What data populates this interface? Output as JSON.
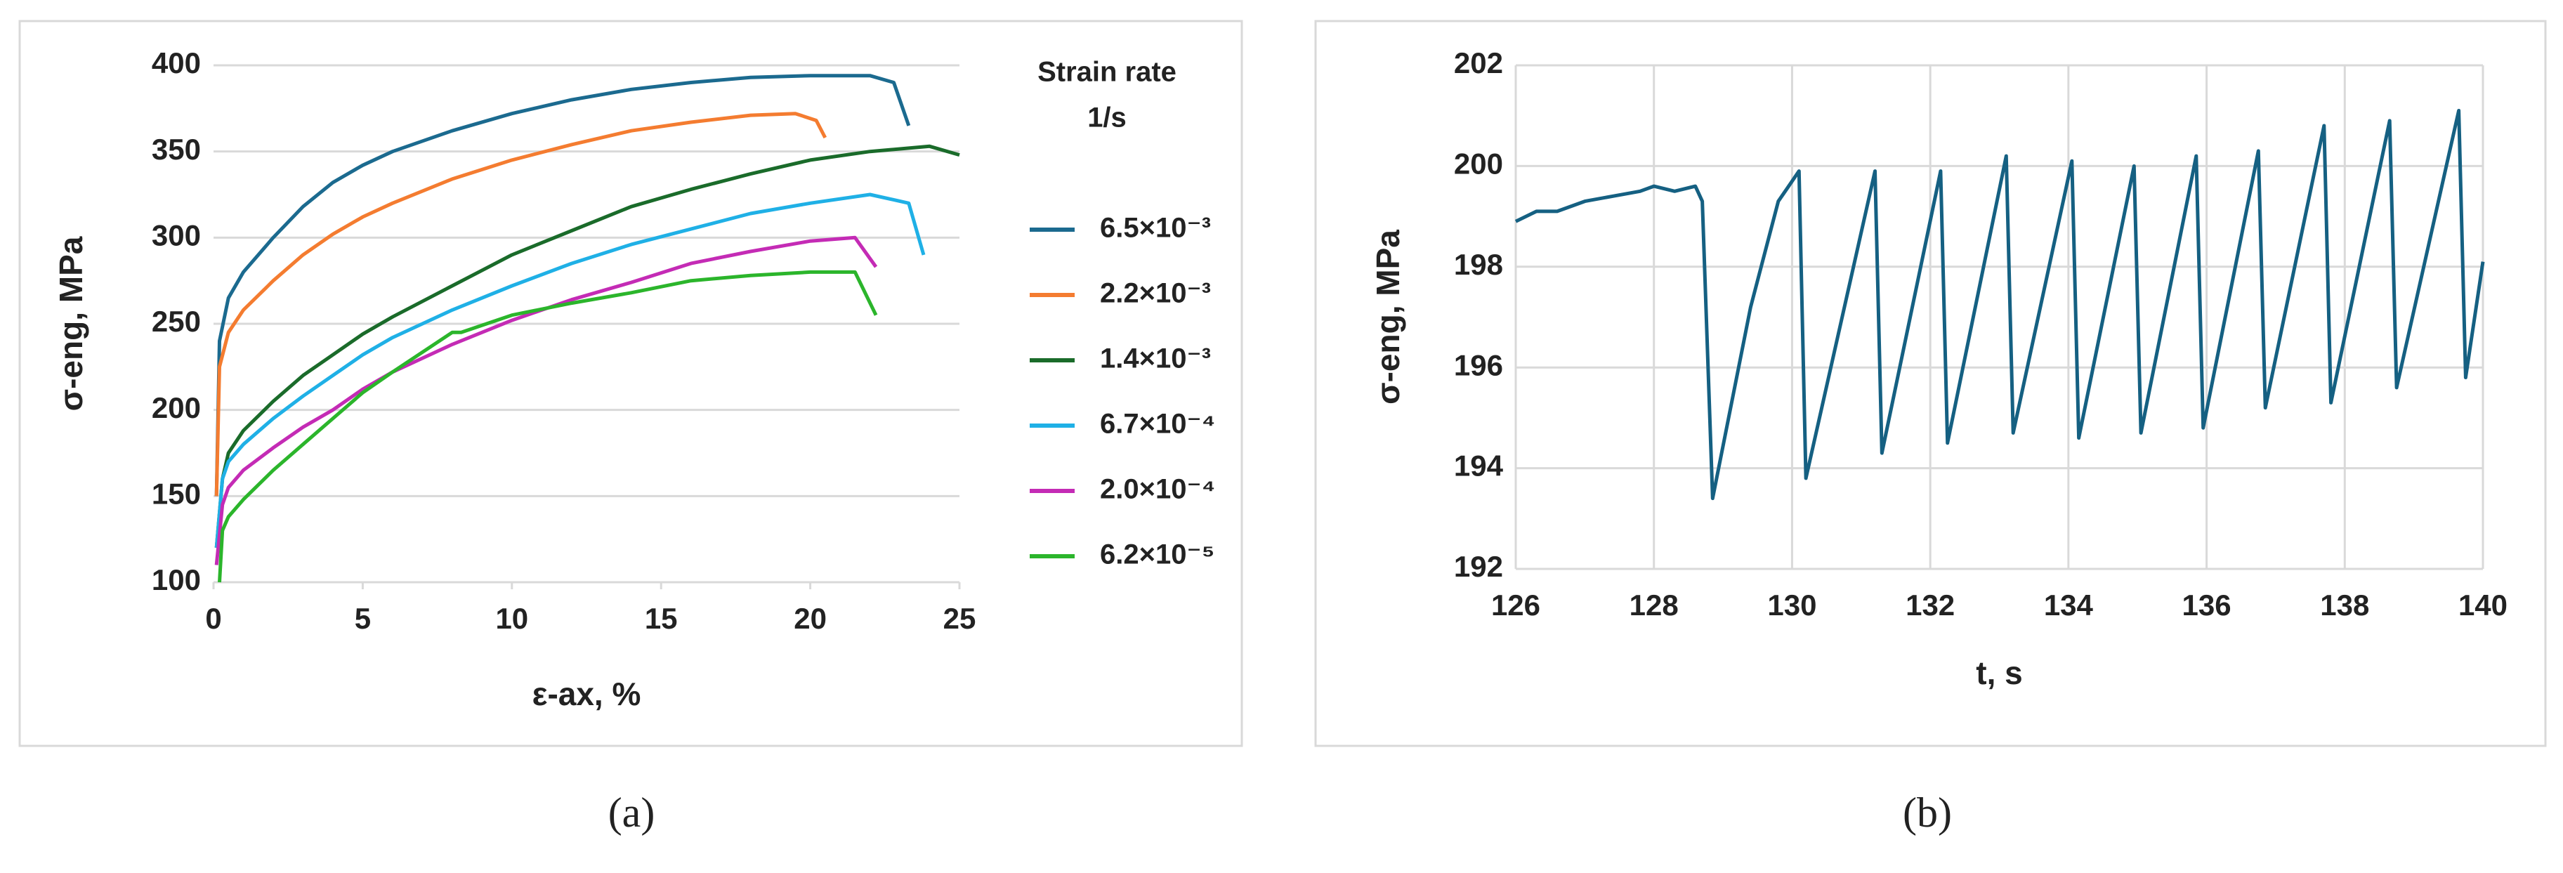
{
  "chart_data": [
    {
      "type": "line",
      "caption": "(a)",
      "x_label": "ε-ax, %",
      "y_label": "σ-eng, MPa",
      "legend_title": "Strain rate",
      "legend_subtitle": "1/s",
      "legend": "right",
      "xlim": [
        0,
        25
      ],
      "xticks": [
        0,
        5,
        10,
        15,
        20,
        25
      ],
      "ylim": [
        100,
        400
      ],
      "yticks": [
        100,
        150,
        200,
        250,
        300,
        350,
        400
      ],
      "grid_x": false,
      "grid_y": true,
      "series": [
        {
          "name": "6.5×10⁻³",
          "color": "#1b6a8f",
          "x": [
            0.1,
            0.2,
            0.5,
            1,
            2,
            3,
            4,
            5,
            6,
            8,
            10,
            12,
            14,
            16,
            18,
            20,
            22,
            22.8,
            23.3
          ],
          "values": [
            150,
            240,
            265,
            280,
            300,
            318,
            332,
            342,
            350,
            362,
            372,
            380,
            386,
            390,
            393,
            394,
            394,
            390,
            365
          ]
        },
        {
          "name": "2.2×10⁻³",
          "color": "#f47c30",
          "x": [
            0.1,
            0.2,
            0.5,
            1,
            2,
            3,
            4,
            5,
            6,
            8,
            10,
            12,
            14,
            16,
            18,
            19.5,
            20.2,
            20.5
          ],
          "values": [
            150,
            225,
            245,
            258,
            275,
            290,
            302,
            312,
            320,
            334,
            345,
            354,
            362,
            367,
            371,
            372,
            368,
            358
          ]
        },
        {
          "name": "1.4×10⁻³",
          "color": "#1a6b2a",
          "x": [
            0.1,
            0.3,
            0.5,
            1,
            2,
            3,
            4,
            5,
            6,
            8,
            10,
            12,
            14,
            16,
            18,
            20,
            22,
            24,
            25
          ],
          "values": [
            120,
            160,
            175,
            188,
            205,
            220,
            232,
            244,
            254,
            272,
            290,
            304,
            318,
            328,
            337,
            345,
            350,
            353,
            348
          ]
        },
        {
          "name": "6.7×10⁻⁴",
          "color": "#1fb0e6",
          "x": [
            0.1,
            0.3,
            0.5,
            1,
            2,
            3,
            4,
            5,
            6,
            8,
            10,
            12,
            14,
            16,
            18,
            20,
            22,
            23.3,
            23.8
          ],
          "values": [
            120,
            160,
            170,
            180,
            195,
            208,
            220,
            232,
            242,
            258,
            272,
            285,
            296,
            305,
            314,
            320,
            325,
            320,
            290
          ]
        },
        {
          "name": "2.0×10⁻⁴",
          "color": "#c42bb5",
          "x": [
            0.1,
            0.3,
            0.5,
            1,
            2,
            3,
            4,
            5,
            6,
            8,
            10,
            12,
            14,
            16,
            18,
            20,
            21.5,
            22.2
          ],
          "values": [
            110,
            145,
            155,
            165,
            178,
            190,
            200,
            212,
            222,
            238,
            252,
            264,
            274,
            285,
            292,
            298,
            300,
            283
          ]
        },
        {
          "name": "6.2×10⁻⁵",
          "color": "#2bb52b",
          "x": [
            0.2,
            0.3,
            0.5,
            1,
            2,
            3,
            4,
            5,
            6,
            8,
            8.3,
            10,
            12,
            14,
            16,
            18,
            20,
            21.5,
            22.2
          ],
          "values": [
            100,
            130,
            138,
            148,
            165,
            180,
            195,
            210,
            222,
            245,
            245,
            255,
            262,
            268,
            275,
            278,
            280,
            280,
            255
          ]
        }
      ]
    },
    {
      "type": "line",
      "caption": "(b)",
      "x_label": "t, s",
      "y_label": "σ-eng, MPa",
      "color": "#156082",
      "xlim": [
        126,
        140
      ],
      "xticks": [
        126,
        128,
        130,
        132,
        134,
        136,
        138,
        140
      ],
      "ylim": [
        192,
        202
      ],
      "yticks": [
        192,
        194,
        196,
        198,
        200,
        202
      ],
      "grid_x": true,
      "grid_y": true,
      "x": [
        126,
        126.3,
        126.6,
        127,
        127.4,
        127.8,
        128,
        128.3,
        128.6,
        128.7,
        128.85,
        129.4,
        129.8,
        130.1,
        130.2,
        131.2,
        131.3,
        132.15,
        132.25,
        133.1,
        133.2,
        134.05,
        134.15,
        134.95,
        135.05,
        135.85,
        135.95,
        136.75,
        136.85,
        137.7,
        137.8,
        138.65,
        138.75,
        139.65,
        139.75,
        140
      ],
      "values": [
        198.9,
        199.1,
        199.1,
        199.3,
        199.4,
        199.5,
        199.6,
        199.5,
        199.6,
        199.3,
        193.4,
        197.2,
        199.3,
        199.9,
        193.8,
        199.9,
        194.3,
        199.9,
        194.5,
        200.2,
        194.7,
        200.1,
        194.6,
        200.0,
        194.7,
        200.2,
        194.8,
        200.3,
        195.2,
        200.8,
        195.3,
        200.9,
        195.6,
        201.1,
        195.8,
        198.1
      ]
    }
  ]
}
